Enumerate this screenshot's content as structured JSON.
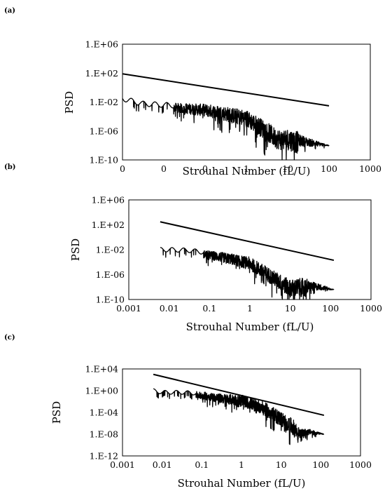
{
  "chart_data": [
    {
      "panel": "(a)",
      "type": "line",
      "xscale": "log",
      "yscale": "log",
      "xlabel": "Strouhal Number (fL/U)",
      "ylabel": "PSD",
      "xlim": [
        0.001,
        1000
      ],
      "ylim": [
        1e-10,
        1000000.0
      ],
      "xtick_labels": [
        "0",
        "0",
        "0",
        "1",
        "10",
        "100",
        "1000"
      ],
      "ytick_labels": [
        "1.E+06",
        "1.E+02",
        "1.E-02",
        "1.E-06",
        "1.E-10"
      ],
      "series": [
        {
          "x": [
            0.001,
            100
          ],
          "y": [
            80,
            0.003
          ]
        },
        {
          "x": [
            0.001,
            0.003,
            0.01,
            0.03,
            0.1,
            0.3,
            1,
            3,
            5,
            7,
            10,
            30,
            100
          ],
          "y": [
            0.03,
            0.006,
            0.004,
            0.003,
            0.002,
            0.0008,
            0.0002,
            5e-06,
            5e-07,
            3e-07,
            4e-07,
            6e-08,
            1e-08
          ]
        }
      ],
      "grid": false
    },
    {
      "panel": "(b)",
      "type": "line",
      "xscale": "log",
      "yscale": "log",
      "xlabel": "Strouhal Number (fL/U)",
      "ylabel": "PSD",
      "xlim": [
        0.001,
        1000
      ],
      "ylim": [
        1e-10,
        1000000.0
      ],
      "xtick_labels": [
        "0.001",
        "0.01",
        "0.1",
        "1",
        "10",
        "100",
        "1000"
      ],
      "ytick_labels": [
        "1.E+06",
        "1.E+02",
        "1.E-02",
        "1.E-06",
        "1.E-10"
      ],
      "series": [
        {
          "x": [
            0.006,
            120
          ],
          "y": [
            300,
            0.0002
          ]
        },
        {
          "x": [
            0.006,
            0.01,
            0.03,
            0.1,
            0.3,
            1,
            3,
            6,
            10,
            20,
            50,
            120
          ],
          "y": [
            0.01,
            0.01,
            0.008,
            0.003,
            0.001,
            0.0002,
            3e-06,
            2e-07,
            3e-08,
            5e-08,
            2e-08,
            4e-09
          ]
        }
      ],
      "grid": false
    },
    {
      "panel": "(c)",
      "type": "line",
      "xscale": "log",
      "yscale": "log",
      "xlabel": "Strouhal Number (fL/U)",
      "ylabel": "PSD",
      "xlim": [
        0.001,
        1000
      ],
      "ylim": [
        1e-12,
        10000.0
      ],
      "xtick_labels": [
        "0.001",
        "0.01",
        "0.1",
        "1",
        "10",
        "100",
        "1000"
      ],
      "ytick_labels": [
        "1.E+04",
        "1.E+00",
        "1.E-04",
        "1.E-08",
        "1.E-12"
      ],
      "series": [
        {
          "x": [
            0.006,
            120
          ],
          "y": [
            1000,
            3e-05
          ]
        },
        {
          "x": [
            0.006,
            0.01,
            0.03,
            0.1,
            0.3,
            1,
            3,
            10,
            20,
            30,
            50,
            120
          ],
          "y": [
            1,
            0.5,
            0.5,
            0.3,
            0.1,
            0.05,
            0.005,
            3e-05,
            1e-06,
            3e-08,
            5e-08,
            1e-08
          ]
        }
      ],
      "grid": false
    }
  ]
}
